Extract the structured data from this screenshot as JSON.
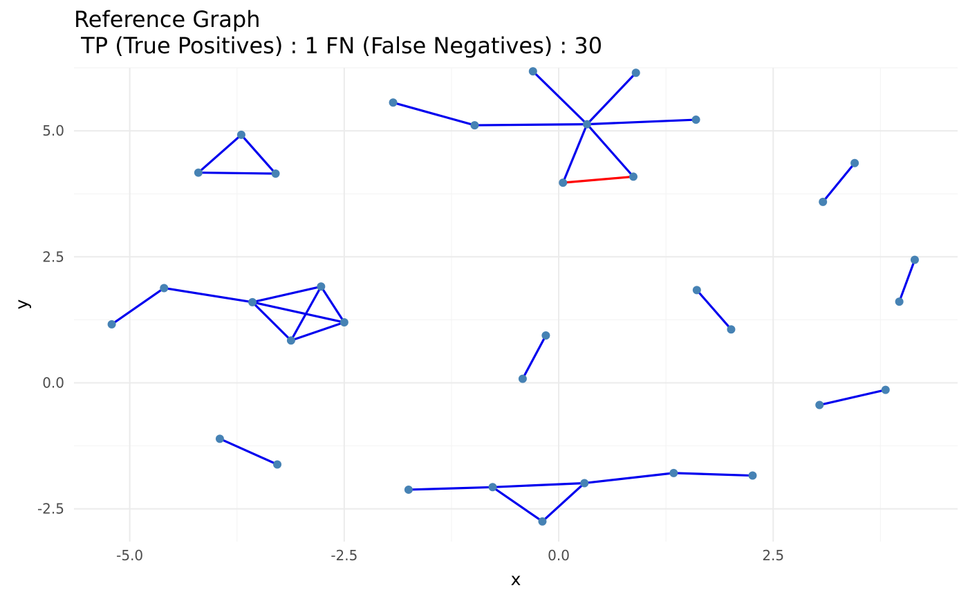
{
  "chart_data": {
    "type": "scatter",
    "title": "Reference Graph",
    "subtitle": " TP (True Positives) : 1 FN (False Negatives) : 30",
    "xlabel": "x",
    "ylabel": "y",
    "xlim": [
      -5.65,
      4.65
    ],
    "ylim": [
      -3.15,
      6.25
    ],
    "x_ticks": [
      -5.0,
      -2.5,
      0.0,
      2.5
    ],
    "x_tick_labels": [
      "-5.0",
      "-2.5",
      "0.0",
      "2.5"
    ],
    "y_ticks": [
      -2.5,
      0.0,
      2.5,
      5.0
    ],
    "y_tick_labels": [
      "-2.5",
      "0.0",
      "2.5",
      "5.0"
    ],
    "grid": true,
    "legend": "none",
    "colors": {
      "node": "#4682b4",
      "fn_edge": "#0000ee",
      "tp_edge": "#ff0000",
      "grid_major": "#ebebeb",
      "grid_minor": "#f4f4f4"
    },
    "nodes": [
      [
        -0.3,
        6.18
      ],
      [
        0.9,
        6.15
      ],
      [
        -1.93,
        5.56
      ],
      [
        -0.98,
        5.11
      ],
      [
        0.33,
        5.13
      ],
      [
        1.6,
        5.22
      ],
      [
        0.05,
        3.97
      ],
      [
        0.87,
        4.09
      ],
      [
        -3.7,
        4.92
      ],
      [
        -4.2,
        4.17
      ],
      [
        -3.3,
        4.15
      ],
      [
        3.08,
        3.59
      ],
      [
        3.45,
        4.36
      ],
      [
        4.15,
        2.44
      ],
      [
        3.97,
        1.61
      ],
      [
        -5.21,
        1.16
      ],
      [
        -4.6,
        1.88
      ],
      [
        -3.57,
        1.6
      ],
      [
        -2.77,
        1.91
      ],
      [
        -3.12,
        0.84
      ],
      [
        -2.5,
        1.2
      ],
      [
        1.61,
        1.84
      ],
      [
        2.01,
        1.06
      ],
      [
        -0.15,
        0.94
      ],
      [
        -0.42,
        0.08
      ],
      [
        3.04,
        -0.44
      ],
      [
        3.81,
        -0.14
      ],
      [
        -3.95,
        -1.11
      ],
      [
        -3.28,
        -1.62
      ],
      [
        -1.75,
        -2.12
      ],
      [
        -0.77,
        -2.07
      ],
      [
        0.3,
        -1.99
      ],
      [
        1.34,
        -1.79
      ],
      [
        2.26,
        -1.84
      ],
      [
        -0.19,
        -2.75
      ]
    ],
    "edges": [
      {
        "from": [
          -1.93,
          5.56
        ],
        "to": [
          -0.98,
          5.11
        ],
        "type": "FN"
      },
      {
        "from": [
          -0.98,
          5.11
        ],
        "to": [
          0.33,
          5.13
        ],
        "type": "FN"
      },
      {
        "from": [
          0.33,
          5.13
        ],
        "to": [
          1.6,
          5.22
        ],
        "type": "FN"
      },
      {
        "from": [
          0.33,
          5.13
        ],
        "to": [
          -0.3,
          6.18
        ],
        "type": "FN"
      },
      {
        "from": [
          0.33,
          5.13
        ],
        "to": [
          0.9,
          6.15
        ],
        "type": "FN"
      },
      {
        "from": [
          0.33,
          5.13
        ],
        "to": [
          0.05,
          3.97
        ],
        "type": "FN"
      },
      {
        "from": [
          0.33,
          5.13
        ],
        "to": [
          0.87,
          4.09
        ],
        "type": "FN"
      },
      {
        "from": [
          0.05,
          3.97
        ],
        "to": [
          0.87,
          4.09
        ],
        "type": "TP"
      },
      {
        "from": [
          -3.7,
          4.92
        ],
        "to": [
          -4.2,
          4.17
        ],
        "type": "FN"
      },
      {
        "from": [
          -3.7,
          4.92
        ],
        "to": [
          -3.3,
          4.15
        ],
        "type": "FN"
      },
      {
        "from": [
          -4.2,
          4.17
        ],
        "to": [
          -3.3,
          4.15
        ],
        "type": "FN"
      },
      {
        "from": [
          3.08,
          3.59
        ],
        "to": [
          3.45,
          4.36
        ],
        "type": "FN"
      },
      {
        "from": [
          4.15,
          2.44
        ],
        "to": [
          3.97,
          1.61
        ],
        "type": "FN"
      },
      {
        "from": [
          -5.21,
          1.16
        ],
        "to": [
          -4.6,
          1.88
        ],
        "type": "FN"
      },
      {
        "from": [
          -4.6,
          1.88
        ],
        "to": [
          -3.57,
          1.6
        ],
        "type": "FN"
      },
      {
        "from": [
          -3.57,
          1.6
        ],
        "to": [
          -2.77,
          1.91
        ],
        "type": "FN"
      },
      {
        "from": [
          -3.57,
          1.6
        ],
        "to": [
          -3.12,
          0.84
        ],
        "type": "FN"
      },
      {
        "from": [
          -3.57,
          1.6
        ],
        "to": [
          -2.5,
          1.2
        ],
        "type": "FN"
      },
      {
        "from": [
          -2.77,
          1.91
        ],
        "to": [
          -3.12,
          0.84
        ],
        "type": "FN"
      },
      {
        "from": [
          -2.77,
          1.91
        ],
        "to": [
          -2.5,
          1.2
        ],
        "type": "FN"
      },
      {
        "from": [
          -3.12,
          0.84
        ],
        "to": [
          -2.5,
          1.2
        ],
        "type": "FN"
      },
      {
        "from": [
          1.61,
          1.84
        ],
        "to": [
          2.01,
          1.06
        ],
        "type": "FN"
      },
      {
        "from": [
          -0.15,
          0.94
        ],
        "to": [
          -0.42,
          0.08
        ],
        "type": "FN"
      },
      {
        "from": [
          3.04,
          -0.44
        ],
        "to": [
          3.81,
          -0.14
        ],
        "type": "FN"
      },
      {
        "from": [
          -3.95,
          -1.11
        ],
        "to": [
          -3.28,
          -1.62
        ],
        "type": "FN"
      },
      {
        "from": [
          -1.75,
          -2.12
        ],
        "to": [
          -0.77,
          -2.07
        ],
        "type": "FN"
      },
      {
        "from": [
          -0.77,
          -2.07
        ],
        "to": [
          0.3,
          -1.99
        ],
        "type": "FN"
      },
      {
        "from": [
          0.3,
          -1.99
        ],
        "to": [
          1.34,
          -1.79
        ],
        "type": "FN"
      },
      {
        "from": [
          1.34,
          -1.79
        ],
        "to": [
          2.26,
          -1.84
        ],
        "type": "FN"
      },
      {
        "from": [
          -0.77,
          -2.07
        ],
        "to": [
          -0.19,
          -2.75
        ],
        "type": "FN"
      },
      {
        "from": [
          0.3,
          -1.99
        ],
        "to": [
          -0.19,
          -2.75
        ],
        "type": "FN"
      }
    ]
  }
}
